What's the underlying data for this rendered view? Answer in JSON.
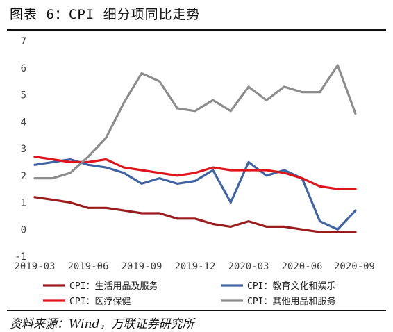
{
  "header": {
    "title": "图表 6：CPI 细分项同比走势"
  },
  "footer": {
    "source": "资料来源：Wind，万联证券研究所"
  },
  "chart_data": {
    "type": "line",
    "title": "",
    "xlabel": "",
    "ylabel": "",
    "ylim": [
      -1,
      7
    ],
    "y_ticks": [
      "-1",
      "0",
      "1",
      "2",
      "3",
      "4",
      "5",
      "6",
      "7"
    ],
    "grid": false,
    "legend_position": "bottom",
    "x": [
      "2019-03",
      "2019-04",
      "2019-05",
      "2019-06",
      "2019-07",
      "2019-08",
      "2019-09",
      "2019-10",
      "2019-11",
      "2019-12",
      "2020-01",
      "2020-02",
      "2020-03",
      "2020-04",
      "2020-05",
      "2020-06",
      "2020-07",
      "2020-08",
      "2020-09"
    ],
    "x_tick_labels": [
      "2019-03",
      "2019-06",
      "2019-09",
      "2019-12",
      "2020-03",
      "2020-06",
      "2020-09"
    ],
    "series": [
      {
        "name": "CPI：生活用品及服务",
        "color": "#9b1c1c",
        "values": [
          1.2,
          1.1,
          1.0,
          0.8,
          0.8,
          0.7,
          0.6,
          0.6,
          0.4,
          0.4,
          0.2,
          0.1,
          0.3,
          0.1,
          0.1,
          0.0,
          -0.1,
          -0.1,
          -0.1
        ]
      },
      {
        "name": "CPI：教育文化和娱乐",
        "color": "#3e64a6",
        "values": [
          2.4,
          2.5,
          2.6,
          2.4,
          2.3,
          2.1,
          1.7,
          1.9,
          1.7,
          1.8,
          2.2,
          1.0,
          2.5,
          2.0,
          2.2,
          1.9,
          0.3,
          0.0,
          0.7
        ]
      },
      {
        "name": "CPI：医疗保健",
        "color": "#e0141b",
        "values": [
          2.7,
          2.6,
          2.5,
          2.5,
          2.6,
          2.3,
          2.2,
          2.1,
          2.0,
          2.1,
          2.3,
          2.2,
          2.2,
          2.2,
          2.1,
          1.9,
          1.6,
          1.5,
          1.5
        ]
      },
      {
        "name": "CPI：其他用品和服务",
        "color": "#8c8c8c",
        "values": [
          1.9,
          1.9,
          2.1,
          2.7,
          3.4,
          4.7,
          5.8,
          5.5,
          4.5,
          4.4,
          4.8,
          4.4,
          5.3,
          4.8,
          5.3,
          5.1,
          5.1,
          6.1,
          4.3
        ]
      }
    ]
  }
}
